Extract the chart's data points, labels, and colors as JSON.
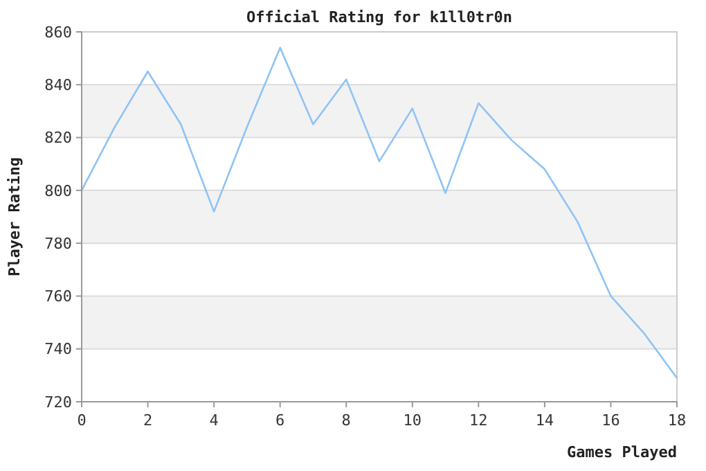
{
  "chart_data": {
    "type": "line",
    "title": "Official Rating for k1ll0tr0n",
    "xlabel": "Games Played",
    "ylabel": "Player Rating",
    "x": [
      0,
      1,
      2,
      3,
      4,
      5,
      6,
      7,
      8,
      9,
      10,
      11,
      12,
      13,
      14,
      15,
      16,
      17,
      18
    ],
    "series": [
      {
        "color": "#8fc3f5",
        "values": [
          800,
          824,
          845,
          825,
          792,
          824,
          854,
          825,
          842,
          811,
          831,
          799,
          833,
          819,
          808,
          788,
          760,
          746,
          729
        ]
      }
    ],
    "xlim": [
      0,
      18
    ],
    "xticks": [
      0,
      2,
      4,
      6,
      8,
      10,
      12,
      14,
      16,
      18
    ],
    "ylim": [
      720,
      860
    ],
    "yticks": [
      720,
      740,
      760,
      780,
      800,
      820,
      840,
      860
    ],
    "grid": "y",
    "marker": "none",
    "line_style": "solid"
  }
}
